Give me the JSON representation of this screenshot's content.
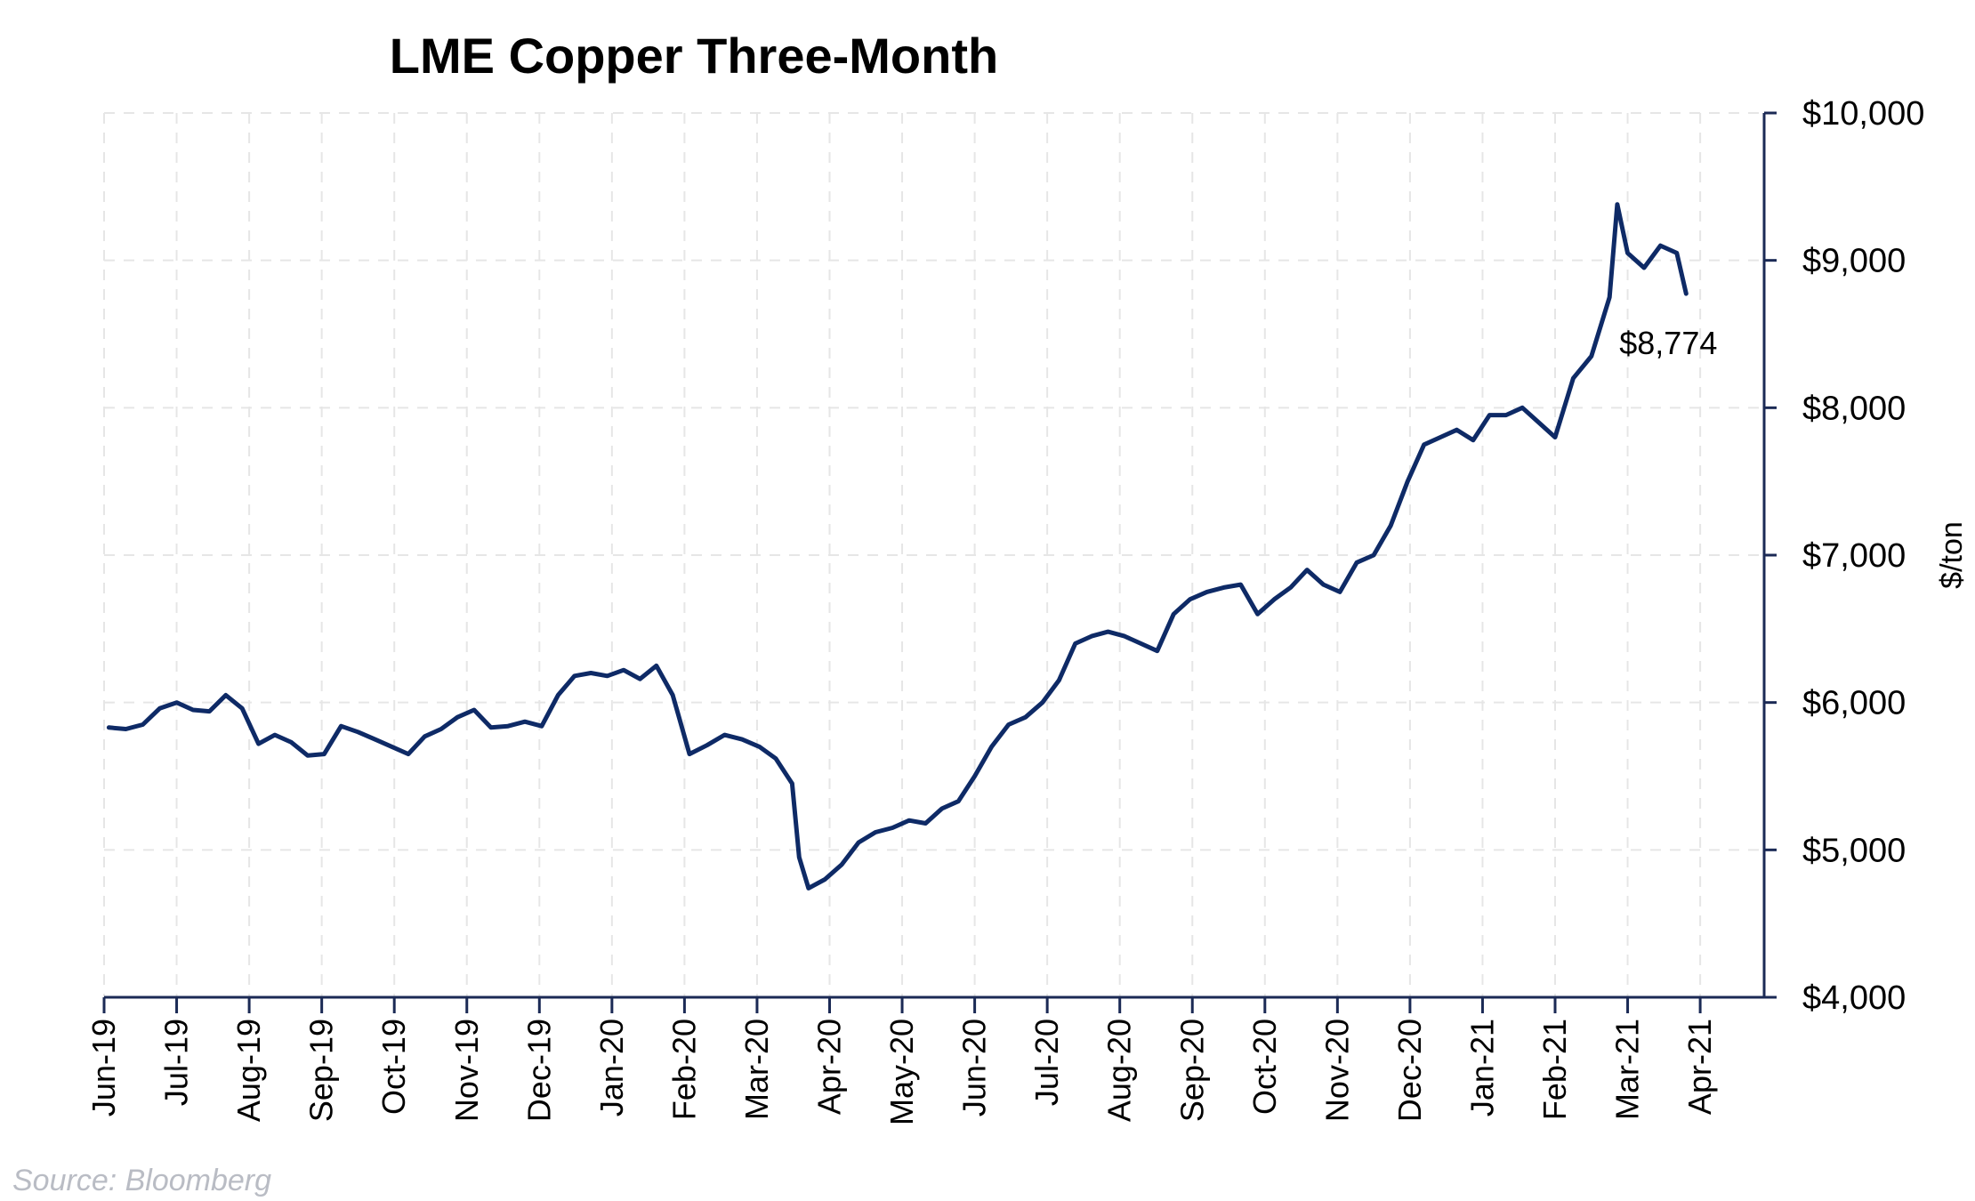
{
  "chart_data": {
    "type": "line",
    "title": "LME Copper Three-Month",
    "ylabel": "$/ton",
    "xlabel": "",
    "ylim": [
      4000,
      10000
    ],
    "y_ticks": [
      4000,
      5000,
      6000,
      7000,
      8000,
      9000,
      10000
    ],
    "y_tick_labels": [
      "$4,000",
      "$5,000",
      "$6,000",
      "$7,000",
      "$8,000",
      "$9,000",
      "$10,000"
    ],
    "x_tick_labels": [
      "Jun-19",
      "Jul-19",
      "Aug-19",
      "Sep-19",
      "Oct-19",
      "Nov-19",
      "Dec-19",
      "Jan-20",
      "Feb-20",
      "Mar-20",
      "Apr-20",
      "May-20",
      "Jun-20",
      "Jul-20",
      "Aug-20",
      "Sep-20",
      "Oct-20",
      "Nov-20",
      "Dec-20",
      "Jan-21",
      "Feb-21",
      "Mar-21",
      "Apr-21"
    ],
    "grid": true,
    "y_axis_side": "right",
    "series": [
      {
        "color": "#0e2a66",
        "x": [
          "2019-06-03",
          "2019-06-10",
          "2019-06-17",
          "2019-06-24",
          "2019-07-01",
          "2019-07-08",
          "2019-07-15",
          "2019-07-22",
          "2019-07-29",
          "2019-08-05",
          "2019-08-12",
          "2019-08-19",
          "2019-08-26",
          "2019-09-02",
          "2019-09-09",
          "2019-09-16",
          "2019-09-23",
          "2019-09-30",
          "2019-10-07",
          "2019-10-14",
          "2019-10-21",
          "2019-10-28",
          "2019-11-04",
          "2019-11-11",
          "2019-11-18",
          "2019-11-25",
          "2019-12-02",
          "2019-12-09",
          "2019-12-16",
          "2019-12-23",
          "2019-12-30",
          "2020-01-06",
          "2020-01-13",
          "2020-01-20",
          "2020-01-27",
          "2020-02-03",
          "2020-02-10",
          "2020-02-17",
          "2020-02-24",
          "2020-03-02",
          "2020-03-09",
          "2020-03-16",
          "2020-03-19",
          "2020-03-23",
          "2020-03-30",
          "2020-04-06",
          "2020-04-13",
          "2020-04-20",
          "2020-04-27",
          "2020-05-04",
          "2020-05-11",
          "2020-05-18",
          "2020-05-25",
          "2020-06-01",
          "2020-06-08",
          "2020-06-15",
          "2020-06-22",
          "2020-06-29",
          "2020-07-06",
          "2020-07-13",
          "2020-07-20",
          "2020-07-27",
          "2020-08-03",
          "2020-08-10",
          "2020-08-17",
          "2020-08-24",
          "2020-08-31",
          "2020-09-07",
          "2020-09-14",
          "2020-09-21",
          "2020-09-28",
          "2020-10-05",
          "2020-10-12",
          "2020-10-19",
          "2020-10-26",
          "2020-11-02",
          "2020-11-09",
          "2020-11-16",
          "2020-11-23",
          "2020-11-30",
          "2020-12-07",
          "2020-12-14",
          "2020-12-21",
          "2020-12-28",
          "2021-01-04",
          "2021-01-11",
          "2021-01-18",
          "2021-01-25",
          "2021-02-01",
          "2021-02-08",
          "2021-02-15",
          "2021-02-22",
          "2021-02-25",
          "2021-03-01",
          "2021-03-08",
          "2021-03-15",
          "2021-03-22",
          "2021-03-26"
        ],
        "y": [
          5830,
          5820,
          5850,
          5960,
          6000,
          5950,
          5940,
          6050,
          5960,
          5720,
          5780,
          5730,
          5640,
          5650,
          5840,
          5800,
          5750,
          5700,
          5650,
          5770,
          5820,
          5900,
          5950,
          5830,
          5840,
          5870,
          5840,
          6050,
          6180,
          6200,
          6180,
          6220,
          6160,
          6250,
          6050,
          5650,
          5710,
          5780,
          5750,
          5700,
          5620,
          5450,
          4950,
          4740,
          4800,
          4900,
          5050,
          5120,
          5150,
          5200,
          5180,
          5280,
          5330,
          5500,
          5700,
          5850,
          5900,
          6000,
          6150,
          6400,
          6450,
          6480,
          6450,
          6400,
          6350,
          6600,
          6700,
          6750,
          6780,
          6800,
          6600,
          6700,
          6780,
          6900,
          6800,
          6750,
          6950,
          7000,
          7200,
          7500,
          7750,
          7800,
          7850,
          7780,
          7950,
          7950,
          8000,
          7900,
          7800,
          8200,
          8350,
          8750,
          9380,
          9050,
          8950,
          9100,
          9050,
          8774
        ]
      }
    ],
    "annotations": [
      {
        "text": "$8,774",
        "x": "2021-03-26",
        "y": 8774
      }
    ]
  },
  "source": "Source: Bloomberg"
}
